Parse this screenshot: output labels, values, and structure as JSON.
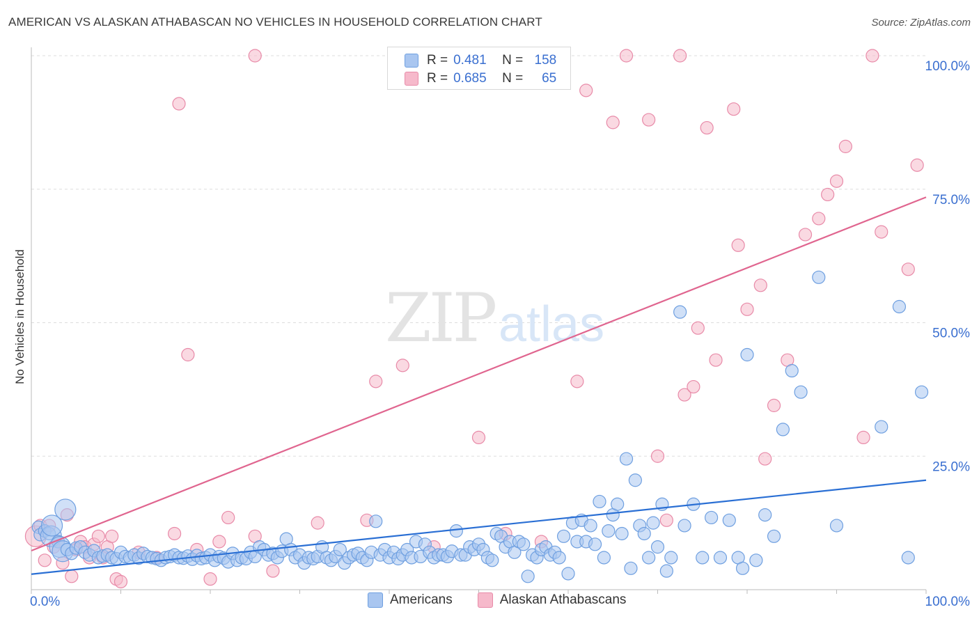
{
  "header": {
    "title": "AMERICAN VS ALASKAN ATHABASCAN NO VEHICLES IN HOUSEHOLD CORRELATION CHART",
    "source": "Source: ZipAtlas.com"
  },
  "legend_top": {
    "rows": [
      {
        "r_label": "R =",
        "r_value": "0.481",
        "n_label": "N =",
        "n_value": "158"
      },
      {
        "r_label": "R =",
        "r_value": "0.685",
        "n_label": "N =",
        "n_value": "65"
      }
    ]
  },
  "legend_bottom": {
    "items": [
      {
        "label": "Americans"
      },
      {
        "label": "Alaskan Athabascans"
      }
    ]
  },
  "watermark": {
    "zip": "ZIP",
    "atlas": "atlas"
  },
  "colors": {
    "blue_fill": "#a9c6f0",
    "blue_stroke": "#6e9fe0",
    "blue_line": "#2a6fd4",
    "pink_fill": "#f6b9cb",
    "pink_stroke": "#e88aa8",
    "pink_line": "#e0658f",
    "grid": "#dddddd",
    "tick_label": "#3a6fd0"
  },
  "chart_data": {
    "type": "scatter",
    "title": "AMERICAN VS ALASKAN ATHABASCAN NO VEHICLES IN HOUSEHOLD CORRELATION CHART",
    "xlabel": "",
    "ylabel": "No Vehicles in Household",
    "xlim": [
      0,
      100
    ],
    "ylim": [
      0,
      100
    ],
    "x_tick_labels": [
      "0.0%",
      "100.0%"
    ],
    "y_ticks": [
      25,
      50,
      75,
      100
    ],
    "y_tick_labels": [
      "25.0%",
      "50.0%",
      "75.0%",
      "100.0%"
    ],
    "grid": true,
    "legend_position": "top-center",
    "series": [
      {
        "name": "Americans",
        "r": 0.481,
        "n": 158,
        "trend": {
          "x": [
            0,
            100
          ],
          "y": [
            2.9,
            20.5
          ]
        },
        "points": [
          [
            0.8,
            11.7,
            1
          ],
          [
            1.0,
            10.3,
            1
          ],
          [
            1.5,
            11.0,
            1
          ],
          [
            2.0,
            10.5,
            1
          ],
          [
            2.2,
            10.0,
            2
          ],
          [
            2.3,
            12.0,
            2
          ],
          [
            3.0,
            9.0,
            1
          ],
          [
            3.2,
            8.0,
            2
          ],
          [
            3.5,
            7.2,
            2
          ],
          [
            3.8,
            15.0,
            2
          ],
          [
            4.0,
            7.5,
            1
          ],
          [
            4.5,
            6.8,
            1
          ],
          [
            5.0,
            7.8,
            1
          ],
          [
            5.5,
            8.0,
            1
          ],
          [
            6.0,
            7.0,
            1
          ],
          [
            6.5,
            6.5,
            1
          ],
          [
            7.0,
            7.3,
            1
          ],
          [
            7.5,
            6.0,
            1
          ],
          [
            8.0,
            6.3,
            1
          ],
          [
            8.5,
            6.5,
            1
          ],
          [
            9.0,
            6.0,
            1
          ],
          [
            9.5,
            5.8,
            1
          ],
          [
            10.0,
            7.0,
            1
          ],
          [
            10.5,
            6.2,
            1
          ],
          [
            11.0,
            6.0,
            1
          ],
          [
            11.5,
            6.5,
            1
          ],
          [
            12.0,
            5.9,
            1
          ],
          [
            12.5,
            6.8,
            1
          ],
          [
            13.0,
            6.2,
            1
          ],
          [
            13.5,
            6.0,
            1
          ],
          [
            14.0,
            5.8,
            1
          ],
          [
            14.5,
            5.5,
            1
          ],
          [
            15.0,
            6.0,
            1
          ],
          [
            15.5,
            6.2,
            1
          ],
          [
            16.0,
            6.5,
            1
          ],
          [
            16.5,
            6.0,
            1
          ],
          [
            17.0,
            5.9,
            1
          ],
          [
            17.5,
            6.3,
            1
          ],
          [
            18.0,
            5.7,
            1
          ],
          [
            18.5,
            6.4,
            1
          ],
          [
            19.0,
            5.8,
            1
          ],
          [
            19.5,
            6.0,
            1
          ],
          [
            20.0,
            6.5,
            1
          ],
          [
            20.5,
            5.5,
            1
          ],
          [
            21.0,
            6.2,
            1
          ],
          [
            21.5,
            5.9,
            1
          ],
          [
            22.0,
            5.2,
            1
          ],
          [
            22.5,
            6.8,
            1
          ],
          [
            23.0,
            5.5,
            1
          ],
          [
            23.5,
            6.0,
            1
          ],
          [
            24.0,
            5.8,
            1
          ],
          [
            24.5,
            7.0,
            1
          ],
          [
            25.0,
            6.2,
            1
          ],
          [
            25.5,
            8.0,
            1
          ],
          [
            26.0,
            7.5,
            1
          ],
          [
            26.5,
            6.5,
            1
          ],
          [
            27.0,
            6.8,
            1
          ],
          [
            27.5,
            6.0,
            1
          ],
          [
            28.0,
            7.2,
            1
          ],
          [
            28.5,
            9.5,
            1
          ],
          [
            29.0,
            7.5,
            1
          ],
          [
            29.5,
            6.0,
            1
          ],
          [
            30.0,
            6.5,
            1
          ],
          [
            30.5,
            5.0,
            1
          ],
          [
            31.0,
            6.0,
            1
          ],
          [
            31.5,
            5.8,
            1
          ],
          [
            32.0,
            6.2,
            1
          ],
          [
            32.5,
            8.0,
            1
          ],
          [
            33.0,
            6.0,
            1
          ],
          [
            33.5,
            5.5,
            1
          ],
          [
            34.0,
            6.2,
            1
          ],
          [
            34.5,
            7.5,
            1
          ],
          [
            35.0,
            5.0,
            1
          ],
          [
            35.5,
            6.0,
            1
          ],
          [
            36.0,
            6.5,
            1
          ],
          [
            36.5,
            6.8,
            1
          ],
          [
            37.0,
            6.0,
            1
          ],
          [
            37.5,
            5.5,
            1
          ],
          [
            38.0,
            7.0,
            1
          ],
          [
            38.5,
            12.8,
            1
          ],
          [
            39.0,
            6.5,
            1
          ],
          [
            39.5,
            7.5,
            1
          ],
          [
            40.0,
            6.0,
            1
          ],
          [
            40.5,
            7.0,
            1
          ],
          [
            41.0,
            5.8,
            1
          ],
          [
            41.5,
            6.5,
            1
          ],
          [
            42.0,
            7.5,
            1
          ],
          [
            42.5,
            6.0,
            1
          ],
          [
            43.0,
            9.0,
            1
          ],
          [
            43.5,
            6.2,
            1
          ],
          [
            44.0,
            8.5,
            1
          ],
          [
            44.5,
            7.0,
            1
          ],
          [
            45.0,
            6.0,
            1
          ],
          [
            45.5,
            6.5,
            1
          ],
          [
            46.0,
            6.5,
            1
          ],
          [
            46.5,
            6.2,
            1
          ],
          [
            47.0,
            7.2,
            1
          ],
          [
            47.5,
            11.0,
            1
          ],
          [
            48.0,
            6.5,
            1
          ],
          [
            48.5,
            6.5,
            1
          ],
          [
            49.0,
            8.0,
            1
          ],
          [
            49.5,
            7.5,
            1
          ],
          [
            50.0,
            8.5,
            1
          ],
          [
            50.5,
            7.5,
            1
          ],
          [
            51.0,
            6.0,
            1
          ],
          [
            51.5,
            5.5,
            1
          ],
          [
            52.0,
            10.5,
            1
          ],
          [
            52.5,
            10.0,
            1
          ],
          [
            53.0,
            8.0,
            1
          ],
          [
            53.5,
            9.0,
            1
          ],
          [
            54.0,
            7.0,
            1
          ],
          [
            54.5,
            9.0,
            1
          ],
          [
            55.0,
            8.5,
            1
          ],
          [
            55.5,
            2.5,
            1
          ],
          [
            56.0,
            6.5,
            1
          ],
          [
            56.5,
            6.0,
            1
          ],
          [
            57.0,
            7.5,
            1
          ],
          [
            57.5,
            8.0,
            1
          ],
          [
            58.0,
            6.5,
            1
          ],
          [
            58.5,
            7.0,
            1
          ],
          [
            59.0,
            6.0,
            1
          ],
          [
            59.5,
            10.0,
            1
          ],
          [
            60.0,
            3.0,
            1
          ],
          [
            60.5,
            12.5,
            1
          ],
          [
            61.0,
            9.0,
            1
          ],
          [
            61.5,
            13.0,
            1
          ],
          [
            62.0,
            9.0,
            1
          ],
          [
            62.5,
            12.0,
            1
          ],
          [
            63.0,
            8.5,
            1
          ],
          [
            63.5,
            16.5,
            1
          ],
          [
            64.0,
            6.0,
            1
          ],
          [
            64.5,
            11.0,
            1
          ],
          [
            65.0,
            14.0,
            1
          ],
          [
            65.5,
            16.0,
            1
          ],
          [
            66.0,
            10.5,
            1
          ],
          [
            66.5,
            24.5,
            1
          ],
          [
            67.0,
            4.0,
            1
          ],
          [
            67.5,
            20.5,
            1
          ],
          [
            68.0,
            12.0,
            1
          ],
          [
            68.5,
            10.5,
            1
          ],
          [
            69.0,
            6.0,
            1
          ],
          [
            69.5,
            12.5,
            1
          ],
          [
            70.0,
            8.0,
            1
          ],
          [
            70.5,
            16.0,
            1
          ],
          [
            71.0,
            3.5,
            1
          ],
          [
            71.5,
            6.0,
            1
          ],
          [
            72.5,
            52.0,
            1
          ],
          [
            73.0,
            12.0,
            1
          ],
          [
            74.0,
            16.0,
            1
          ],
          [
            75.0,
            6.0,
            1
          ],
          [
            76.0,
            13.5,
            1
          ],
          [
            77.0,
            6.0,
            1
          ],
          [
            78.0,
            13.0,
            1
          ],
          [
            79.0,
            6.0,
            1
          ],
          [
            79.5,
            4.0,
            1
          ],
          [
            80.0,
            44.0,
            1
          ],
          [
            81.0,
            5.5,
            1
          ],
          [
            82.0,
            14.0,
            1
          ],
          [
            83.0,
            10.0,
            1
          ],
          [
            84.0,
            30.0,
            1
          ],
          [
            85.0,
            41.0,
            1
          ],
          [
            86.0,
            37.0,
            1
          ],
          [
            88.0,
            58.5,
            1
          ],
          [
            90.0,
            12.0,
            1
          ],
          [
            95.0,
            30.5,
            1
          ],
          [
            97.0,
            53.0,
            1
          ],
          [
            98.0,
            6.0,
            1
          ],
          [
            99.5,
            37.0,
            1
          ]
        ]
      },
      {
        "name": "Alaskan Athabascans",
        "r": 0.685,
        "n": 65,
        "trend": {
          "x": [
            0,
            100
          ],
          "y": [
            7.3,
            73.5
          ]
        },
        "points": [
          [
            0.5,
            10.0,
            2
          ],
          [
            1.0,
            12.0,
            1
          ],
          [
            1.5,
            5.5,
            1
          ],
          [
            2.0,
            12.0,
            1
          ],
          [
            2.5,
            8.0,
            1
          ],
          [
            3.0,
            9.0,
            1
          ],
          [
            3.5,
            5.0,
            1
          ],
          [
            4.0,
            14.0,
            1
          ],
          [
            4.5,
            2.5,
            1
          ],
          [
            5.0,
            7.5,
            1
          ],
          [
            5.5,
            9.0,
            1
          ],
          [
            6.0,
            8.0,
            1
          ],
          [
            6.5,
            6.0,
            1
          ],
          [
            7.0,
            8.5,
            1
          ],
          [
            7.5,
            10.0,
            1
          ],
          [
            8.0,
            6.0,
            1
          ],
          [
            8.5,
            8.0,
            1
          ],
          [
            9.0,
            10.0,
            1
          ],
          [
            9.5,
            2.0,
            1
          ],
          [
            10.0,
            1.5,
            1
          ],
          [
            12.0,
            7.0,
            1
          ],
          [
            14.0,
            6.0,
            1
          ],
          [
            16.0,
            10.5,
            1
          ],
          [
            16.5,
            91.0,
            1
          ],
          [
            17.5,
            44.0,
            1
          ],
          [
            18.5,
            7.5,
            1
          ],
          [
            20.0,
            2.0,
            1
          ],
          [
            21.0,
            9.0,
            1
          ],
          [
            22.0,
            13.5,
            1
          ],
          [
            25.0,
            10.0,
            1
          ],
          [
            25.0,
            100.0,
            1
          ],
          [
            27.0,
            3.5,
            1
          ],
          [
            32.0,
            12.5,
            1
          ],
          [
            37.5,
            13.0,
            1
          ],
          [
            38.5,
            39.0,
            1
          ],
          [
            41.5,
            42.0,
            1
          ],
          [
            45.0,
            8.0,
            1
          ],
          [
            50.0,
            28.5,
            1
          ],
          [
            53.0,
            10.5,
            1
          ],
          [
            57.0,
            9.0,
            1
          ],
          [
            61.0,
            39.0,
            1
          ],
          [
            62.0,
            93.5,
            1
          ],
          [
            65.0,
            87.5,
            1
          ],
          [
            66.5,
            100.0,
            1
          ],
          [
            69.0,
            88.0,
            1
          ],
          [
            70.0,
            25.0,
            1
          ],
          [
            71.0,
            13.0,
            1
          ],
          [
            72.5,
            100.0,
            1
          ],
          [
            73.0,
            36.5,
            1
          ],
          [
            74.0,
            38.0,
            1
          ],
          [
            74.5,
            49.0,
            1
          ],
          [
            75.5,
            86.5,
            1
          ],
          [
            76.5,
            43.0,
            1
          ],
          [
            78.5,
            90.0,
            1
          ],
          [
            79.0,
            64.5,
            1
          ],
          [
            80.0,
            52.5,
            1
          ],
          [
            81.5,
            57.0,
            1
          ],
          [
            82.0,
            24.5,
            1
          ],
          [
            83.0,
            34.5,
            1
          ],
          [
            84.5,
            43.0,
            1
          ],
          [
            86.5,
            66.5,
            1
          ],
          [
            88.0,
            69.5,
            1
          ],
          [
            89.0,
            74.0,
            1
          ],
          [
            90.0,
            76.5,
            1
          ],
          [
            91.0,
            83.0,
            1
          ],
          [
            93.0,
            28.5,
            1
          ],
          [
            94.0,
            100.0,
            1
          ],
          [
            95.0,
            67.0,
            1
          ],
          [
            98.0,
            60.0,
            1
          ],
          [
            99.0,
            79.5,
            1
          ]
        ]
      }
    ]
  }
}
